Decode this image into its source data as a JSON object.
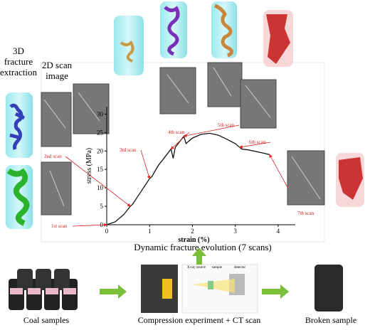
{
  "chart_data": {
    "type": "line",
    "title": "Dynamic fracture evolution (7 scans)",
    "x_label": "strain (%)",
    "y_label": "stress (MPa)",
    "x": [
      0,
      0.2,
      0.4,
      0.55,
      0.6,
      0.8,
      1.0,
      1.05,
      1.2,
      1.4,
      1.5,
      1.55,
      1.6,
      1.7,
      1.8,
      1.85,
      2.0,
      2.2,
      2.4,
      2.6,
      2.8,
      3.0,
      3.1,
      3.15,
      3.3,
      3.5,
      3.7,
      3.8
    ],
    "series": [
      {
        "name": "stress",
        "color": "#111111",
        "values": [
          0,
          0.8,
          2.8,
          5,
          5.5,
          9,
          12.5,
          13,
          16,
          19,
          20.5,
          18,
          21,
          22.5,
          24,
          22,
          23.5,
          24.5,
          24.8,
          24.3,
          23.2,
          22,
          21,
          20.5,
          20.3,
          19.8,
          19.3,
          19
        ]
      }
    ],
    "xlim": [
      0,
      4.4
    ],
    "ylim": [
      0,
      32
    ],
    "xticks": [
      0,
      1,
      2,
      3,
      4
    ],
    "yticks": [
      0,
      5,
      10,
      15,
      20,
      25,
      30
    ],
    "annotations": [
      "1st scan",
      "2nd scan",
      "3rd scan",
      "4th scan",
      "5th scan",
      "6th scan",
      "7th scan"
    ],
    "annotation_color": "#d22222"
  },
  "panels": {
    "col_3d": "3D fracture extraction",
    "col_2d": "2D scan image",
    "coal": "Coal samples",
    "experiment": "Compression experiment + CT scan",
    "broken": "Broken  sample",
    "ct_labels": [
      "X-ray source",
      "sample",
      "detector"
    ]
  }
}
